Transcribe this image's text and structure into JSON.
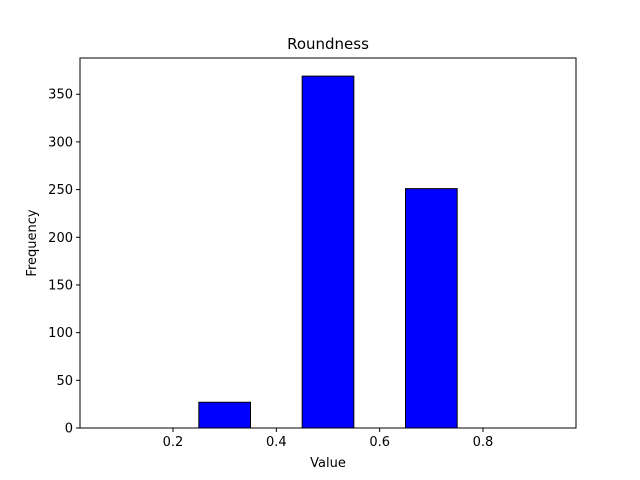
{
  "chart_data": {
    "type": "bar",
    "title": "Roundness",
    "xlabel": "Value",
    "ylabel": "Frequency",
    "xlim": [
      0.02,
      0.98
    ],
    "ylim": [
      0,
      388
    ],
    "xticks": [
      0.2,
      0.4,
      0.6,
      0.8
    ],
    "xtick_labels": [
      "0.2",
      "0.4",
      "0.6",
      "0.8"
    ],
    "yticks": [
      0,
      50,
      100,
      150,
      200,
      250,
      300,
      350
    ],
    "ytick_labels": [
      "0",
      "50",
      "100",
      "150",
      "200",
      "250",
      "300",
      "350"
    ],
    "bins": [
      {
        "x_start": 0.05,
        "x_end": 0.15,
        "value": 0
      },
      {
        "x_start": 0.25,
        "x_end": 0.35,
        "value": 27
      },
      {
        "x_start": 0.45,
        "x_end": 0.55,
        "value": 369
      },
      {
        "x_start": 0.65,
        "x_end": 0.75,
        "value": 251
      },
      {
        "x_start": 0.85,
        "x_end": 0.95,
        "value": 0
      }
    ],
    "bar_color": "#0000ff",
    "edge_color": "#000000",
    "grid": false,
    "legend": "none"
  }
}
